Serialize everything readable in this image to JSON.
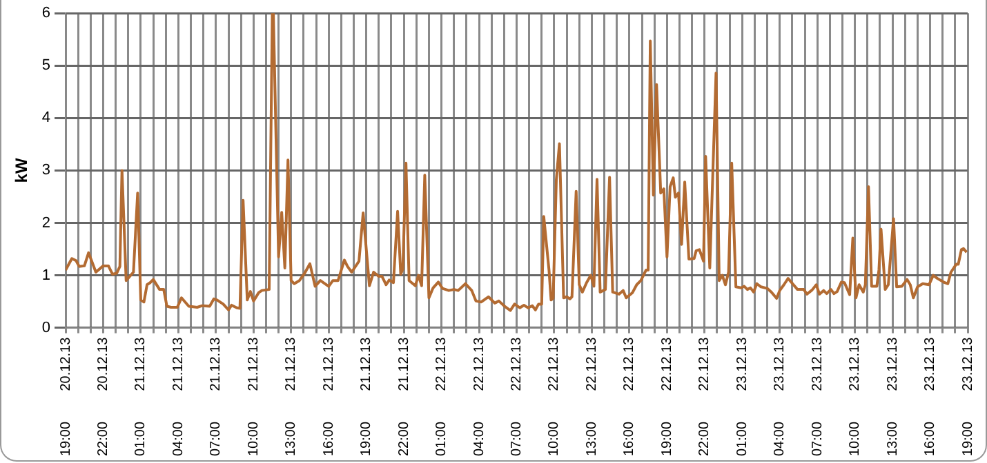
{
  "chart_data": {
    "type": "line",
    "ylabel": "kW",
    "color": "#b36b32",
    "marker": "none",
    "grid": true,
    "legend": false,
    "x": [
      "--12-20T19:00",
      "--12-20T19:30",
      "--12-20T19:50",
      "--12-20T20:05",
      "--12-20T20:30",
      "--12-20T20:50",
      "--12-20T21:05",
      "--12-20T21:25",
      "--12-20T22:00",
      "--12-20T22:25",
      "--12-20T22:45",
      "--12-20T23:05",
      "--12-20T23:20",
      "--12-20T23:30",
      "--12-20T23:50",
      "--12-21T00:25",
      "--12-21T00:45",
      "--12-21T01:00",
      "--12-21T01:15",
      "--12-21T01:30",
      "--12-21T01:45",
      "--12-21T02:00",
      "--12-21T02:30",
      "--12-21T02:50",
      "--12-21T03:05",
      "--12-21T03:25",
      "--12-21T03:55",
      "--12-21T04:15",
      "--12-21T04:50",
      "--12-21T05:30",
      "--12-21T05:55",
      "--12-21T06:30",
      "--12-21T06:50",
      "--12-21T07:05",
      "--12-21T07:35",
      "--12-21T08:00",
      "--12-21T08:15",
      "--12-21T08:40",
      "--12-21T08:55",
      "--12-21T09:10",
      "--12-21T09:30",
      "--12-21T09:45",
      "--12-21T10:00",
      "--12-21T10:25",
      "--12-21T10:40",
      "--12-21T11:15",
      "--12-21T11:30",
      "--12-21T11:35",
      "--12-21T12:00",
      "--12-21T12:15",
      "--12-21T12:30",
      "--12-21T12:45",
      "--12-21T13:00",
      "--12-21T13:15",
      "--12-21T13:40",
      "--12-21T14:05",
      "--12-21T14:30",
      "--12-21T14:55",
      "--12-21T15:20",
      "--12-21T16:00",
      "--12-21T16:20",
      "--12-21T16:45",
      "--12-21T17:15",
      "--12-21T17:30",
      "--12-21T17:50",
      "--12-21T18:25",
      "--12-21T18:45",
      "--12-21T19:15",
      "--12-21T19:35",
      "--12-21T20:00",
      "--12-21T20:15",
      "--12-21T20:35",
      "--12-21T20:50",
      "--12-21T21:10",
      "--12-21T21:30",
      "--12-21T21:45",
      "--12-21T21:55",
      "--12-21T22:10",
      "--12-21T22:25",
      "--12-21T22:55",
      "--12-21T23:10",
      "--12-21T23:25",
      "--12-21T23:40",
      "--12-22T00:00",
      "--12-22T00:20",
      "--12-22T00:45",
      "--12-22T01:05",
      "--12-22T01:35",
      "--12-22T02:00",
      "--12-22T02:20",
      "--12-22T02:55",
      "--12-22T03:25",
      "--12-22T03:45",
      "--12-22T04:10",
      "--12-22T04:45",
      "--12-22T05:15",
      "--12-22T05:35",
      "--12-22T06:05",
      "--12-22T06:30",
      "--12-22T06:50",
      "--12-22T07:15",
      "--12-22T07:35",
      "--12-22T07:55",
      "--12-22T08:15",
      "--12-22T08:30",
      "--12-22T08:45",
      "--12-22T09:00",
      "--12-22T09:10",
      "--12-22T09:35",
      "--12-22T09:45",
      "--12-22T09:55",
      "--12-22T10:10",
      "--12-22T10:25",
      "--12-22T10:45",
      "--12-22T11:00",
      "--12-22T11:15",
      "--12-22T11:25",
      "--12-22T11:45",
      "--12-22T12:00",
      "--12-22T12:15",
      "--12-22T12:35",
      "--12-22T12:55",
      "--12-22T13:10",
      "--12-22T13:25",
      "--12-22T13:40",
      "--12-22T14:05",
      "--12-22T14:25",
      "--12-22T14:40",
      "--12-22T15:10",
      "--12-22T15:30",
      "--12-22T15:45",
      "--12-22T16:15",
      "--12-22T16:35",
      "--12-22T16:55",
      "--12-22T17:20",
      "--12-22T17:30",
      "--12-22T17:40",
      "--12-22T17:55",
      "--12-22T18:10",
      "--12-22T18:30",
      "--12-22T18:45",
      "--12-22T19:00",
      "--12-22T19:15",
      "--12-22T19:30",
      "--12-22T19:40",
      "--12-22T19:55",
      "--12-22T20:10",
      "--12-22T20:25",
      "--12-22T20:45",
      "--12-22T21:10",
      "--12-22T21:20",
      "--12-22T21:35",
      "--12-22T21:55",
      "--12-22T22:05",
      "--12-22T22:25",
      "--12-22T22:55",
      "--12-22T23:10",
      "--12-22T23:25",
      "--12-22T23:40",
      "--12-22T23:55",
      "--12-23T00:10",
      "--12-23T00:30",
      "--12-23T00:55",
      "--12-23T01:10",
      "--12-23T01:25",
      "--12-23T01:40",
      "--12-23T01:55",
      "--12-23T02:10",
      "--12-23T02:30",
      "--12-23T03:00",
      "--12-23T03:20",
      "--12-23T03:45",
      "--12-23T04:00",
      "--12-23T04:20",
      "--12-23T04:40",
      "--12-23T04:55",
      "--12-23T05:25",
      "--12-23T05:55",
      "--12-23T06:10",
      "--12-23T06:35",
      "--12-23T06:55",
      "--12-23T07:10",
      "--12-23T07:30",
      "--12-23T07:45",
      "--12-23T08:05",
      "--12-23T08:20",
      "--12-23T08:35",
      "--12-23T08:55",
      "--12-23T09:10",
      "--12-23T09:35",
      "--12-23T09:50",
      "--12-23T10:05",
      "--12-23T10:20",
      "--12-23T10:40",
      "--12-23T10:50",
      "--12-23T11:05",
      "--12-23T11:20",
      "--12-23T11:45",
      "--12-23T11:55",
      "--12-23T12:05",
      "--12-23T12:25",
      "--12-23T12:40",
      "--12-23T13:05",
      "--12-23T13:20",
      "--12-23T13:45",
      "--12-23T14:10",
      "--12-23T14:25",
      "--12-23T14:40",
      "--12-23T15:00",
      "--12-23T15:25",
      "--12-23T15:55",
      "--12-23T16:15",
      "--12-23T16:35",
      "--12-23T17:10",
      "--12-23T17:25",
      "--12-23T17:40",
      "--12-23T18:05",
      "--12-23T18:15",
      "--12-23T18:30",
      "--12-23T18:40",
      "--12-23T18:55"
    ],
    "values": [
      1.1,
      1.32,
      1.28,
      1.17,
      1.18,
      1.43,
      1.27,
      1.06,
      1.18,
      1.18,
      1.02,
      1.04,
      1.17,
      3.0,
      0.9,
      1.06,
      2.57,
      0.53,
      0.49,
      0.82,
      0.86,
      0.92,
      0.73,
      0.73,
      0.41,
      0.39,
      0.39,
      0.57,
      0.41,
      0.39,
      0.42,
      0.41,
      0.55,
      0.53,
      0.45,
      0.34,
      0.43,
      0.38,
      0.37,
      2.43,
      0.53,
      0.69,
      0.51,
      0.67,
      0.71,
      0.73,
      6.0,
      6.0,
      1.35,
      2.2,
      1.14,
      3.2,
      0.9,
      0.84,
      0.9,
      1.04,
      1.22,
      0.79,
      0.9,
      0.79,
      0.9,
      0.9,
      1.29,
      1.17,
      1.06,
      1.27,
      2.19,
      0.8,
      1.06,
      0.98,
      0.98,
      0.82,
      0.91,
      0.86,
      2.22,
      1.02,
      1.12,
      3.14,
      0.9,
      0.8,
      1.0,
      0.8,
      2.91,
      0.57,
      0.76,
      0.87,
      0.75,
      0.71,
      0.73,
      0.71,
      0.84,
      0.71,
      0.51,
      0.49,
      0.59,
      0.47,
      0.51,
      0.4,
      0.33,
      0.45,
      0.38,
      0.43,
      0.38,
      0.42,
      0.34,
      0.45,
      0.45,
      2.12,
      1.1,
      0.53,
      0.56,
      2.82,
      3.51,
      0.57,
      0.59,
      0.55,
      0.59,
      2.6,
      0.82,
      0.68,
      0.86,
      1.0,
      0.79,
      2.83,
      0.68,
      0.73,
      2.87,
      0.68,
      0.64,
      0.71,
      0.57,
      0.67,
      0.82,
      0.9,
      1.1,
      1.1,
      5.47,
      2.53,
      4.64,
      2.57,
      2.65,
      1.35,
      2.69,
      2.86,
      2.49,
      2.57,
      1.59,
      2.78,
      1.31,
      1.32,
      1.47,
      1.49,
      1.27,
      3.27,
      1.14,
      4.86,
      0.9,
      1.0,
      0.82,
      1.06,
      3.14,
      0.78,
      0.76,
      0.79,
      0.73,
      0.76,
      0.68,
      0.84,
      0.78,
      0.75,
      0.68,
      0.56,
      0.71,
      0.82,
      0.94,
      0.87,
      0.73,
      0.73,
      0.64,
      0.72,
      0.82,
      0.64,
      0.71,
      0.65,
      0.73,
      0.65,
      0.69,
      0.87,
      0.86,
      0.63,
      1.71,
      0.57,
      0.82,
      0.68,
      0.82,
      2.69,
      0.79,
      0.79,
      1.1,
      1.88,
      0.73,
      0.82,
      2.08,
      0.78,
      0.79,
      0.92,
      0.82,
      0.57,
      0.78,
      0.84,
      0.82,
      1.0,
      0.94,
      0.86,
      0.84,
      1.06,
      1.21,
      1.21,
      1.49,
      1.51,
      1.44
    ],
    "xlim": [
      "--12-20T19:00",
      "--12-23T19:00"
    ],
    "xticks": [
      {
        "value": "--12-20T19:00",
        "label": "19:00 20.12.13"
      },
      {
        "value": "--12-20T20:00",
        "label": null
      },
      {
        "value": "--12-20T21:00",
        "label": null
      },
      {
        "value": "--12-20T22:00",
        "label": "22:00 20.12.13"
      },
      {
        "value": "--12-20T23:00",
        "label": null
      },
      {
        "value": "--12-21T00:00",
        "label": null
      },
      {
        "value": "--12-21T01:00",
        "label": "01:00 21.12.13"
      },
      {
        "value": "--12-21T02:00",
        "label": null
      },
      {
        "value": "--12-21T03:00",
        "label": null
      },
      {
        "value": "--12-21T04:00",
        "label": "04:00 21.12.13"
      },
      {
        "value": "--12-21T05:00",
        "label": null
      },
      {
        "value": "--12-21T06:00",
        "label": null
      },
      {
        "value": "--12-21T07:00",
        "label": "07:00 21.12.13"
      },
      {
        "value": "--12-21T08:00",
        "label": null
      },
      {
        "value": "--12-21T09:00",
        "label": null
      },
      {
        "value": "--12-21T10:00",
        "label": "10:00 21.12.13"
      },
      {
        "value": "--12-21T11:00",
        "label": null
      },
      {
        "value": "--12-21T12:00",
        "label": null
      },
      {
        "value": "--12-21T13:00",
        "label": "13:00 21.12.13"
      },
      {
        "value": "--12-21T14:00",
        "label": null
      },
      {
        "value": "--12-21T15:00",
        "label": null
      },
      {
        "value": "--12-21T16:00",
        "label": "16:00 21.12.13"
      },
      {
        "value": "--12-21T17:00",
        "label": null
      },
      {
        "value": "--12-21T18:00",
        "label": null
      },
      {
        "value": "--12-21T19:00",
        "label": "19:00 21.12.13"
      },
      {
        "value": "--12-21T20:00",
        "label": null
      },
      {
        "value": "--12-21T21:00",
        "label": null
      },
      {
        "value": "--12-21T22:00",
        "label": "22:00 21.12.13"
      },
      {
        "value": "--12-21T23:00",
        "label": null
      },
      {
        "value": "--12-22T00:00",
        "label": null
      },
      {
        "value": "--12-22T01:00",
        "label": "01:00 22.12.13"
      },
      {
        "value": "--12-22T02:00",
        "label": null
      },
      {
        "value": "--12-22T03:00",
        "label": null
      },
      {
        "value": "--12-22T04:00",
        "label": "04:00 22.12.13"
      },
      {
        "value": "--12-22T05:00",
        "label": null
      },
      {
        "value": "--12-22T06:00",
        "label": null
      },
      {
        "value": "--12-22T07:00",
        "label": "07:00 22.12.13"
      },
      {
        "value": "--12-22T08:00",
        "label": null
      },
      {
        "value": "--12-22T09:00",
        "label": null
      },
      {
        "value": "--12-22T10:00",
        "label": "10:00 22.12.13"
      },
      {
        "value": "--12-22T11:00",
        "label": null
      },
      {
        "value": "--12-22T12:00",
        "label": null
      },
      {
        "value": "--12-22T13:00",
        "label": "13:00 22.12.13"
      },
      {
        "value": "--12-22T14:00",
        "label": null
      },
      {
        "value": "--12-22T15:00",
        "label": null
      },
      {
        "value": "--12-22T16:00",
        "label": "16:00 22.12.13"
      },
      {
        "value": "--12-22T17:00",
        "label": null
      },
      {
        "value": "--12-22T18:00",
        "label": null
      },
      {
        "value": "--12-22T19:00",
        "label": "19:00 22.12.13"
      },
      {
        "value": "--12-22T20:00",
        "label": null
      },
      {
        "value": "--12-22T21:00",
        "label": null
      },
      {
        "value": "--12-22T22:00",
        "label": "22:00 22.12.13"
      },
      {
        "value": "--12-22T23:00",
        "label": null
      },
      {
        "value": "--12-23T00:00",
        "label": null
      },
      {
        "value": "--12-23T01:00",
        "label": "01:00 23.12.13"
      },
      {
        "value": "--12-23T02:00",
        "label": null
      },
      {
        "value": "--12-23T03:00",
        "label": null
      },
      {
        "value": "--12-23T04:00",
        "label": "04:00 23.12.13"
      },
      {
        "value": "--12-23T05:00",
        "label": null
      },
      {
        "value": "--12-23T06:00",
        "label": null
      },
      {
        "value": "--12-23T07:00",
        "label": "07:00 23.12.13"
      },
      {
        "value": "--12-23T08:00",
        "label": null
      },
      {
        "value": "--12-23T09:00",
        "label": null
      },
      {
        "value": "--12-23T10:00",
        "label": "10:00 23.12.13"
      },
      {
        "value": "--12-23T11:00",
        "label": null
      },
      {
        "value": "--12-23T12:00",
        "label": null
      },
      {
        "value": "--12-23T13:00",
        "label": "13:00 23.12.13"
      },
      {
        "value": "--12-23T14:00",
        "label": null
      },
      {
        "value": "--12-23T15:00",
        "label": null
      },
      {
        "value": "--12-23T16:00",
        "label": "16:00 23.12.13"
      },
      {
        "value": "--12-23T17:00",
        "label": null
      },
      {
        "value": "--12-23T18:00",
        "label": null
      },
      {
        "value": "--12-23T19:00",
        "label": "19:00 23.12.13"
      }
    ],
    "ylim": [
      0,
      6
    ],
    "yticks": [
      0,
      1,
      2,
      3,
      4,
      5,
      6
    ]
  }
}
